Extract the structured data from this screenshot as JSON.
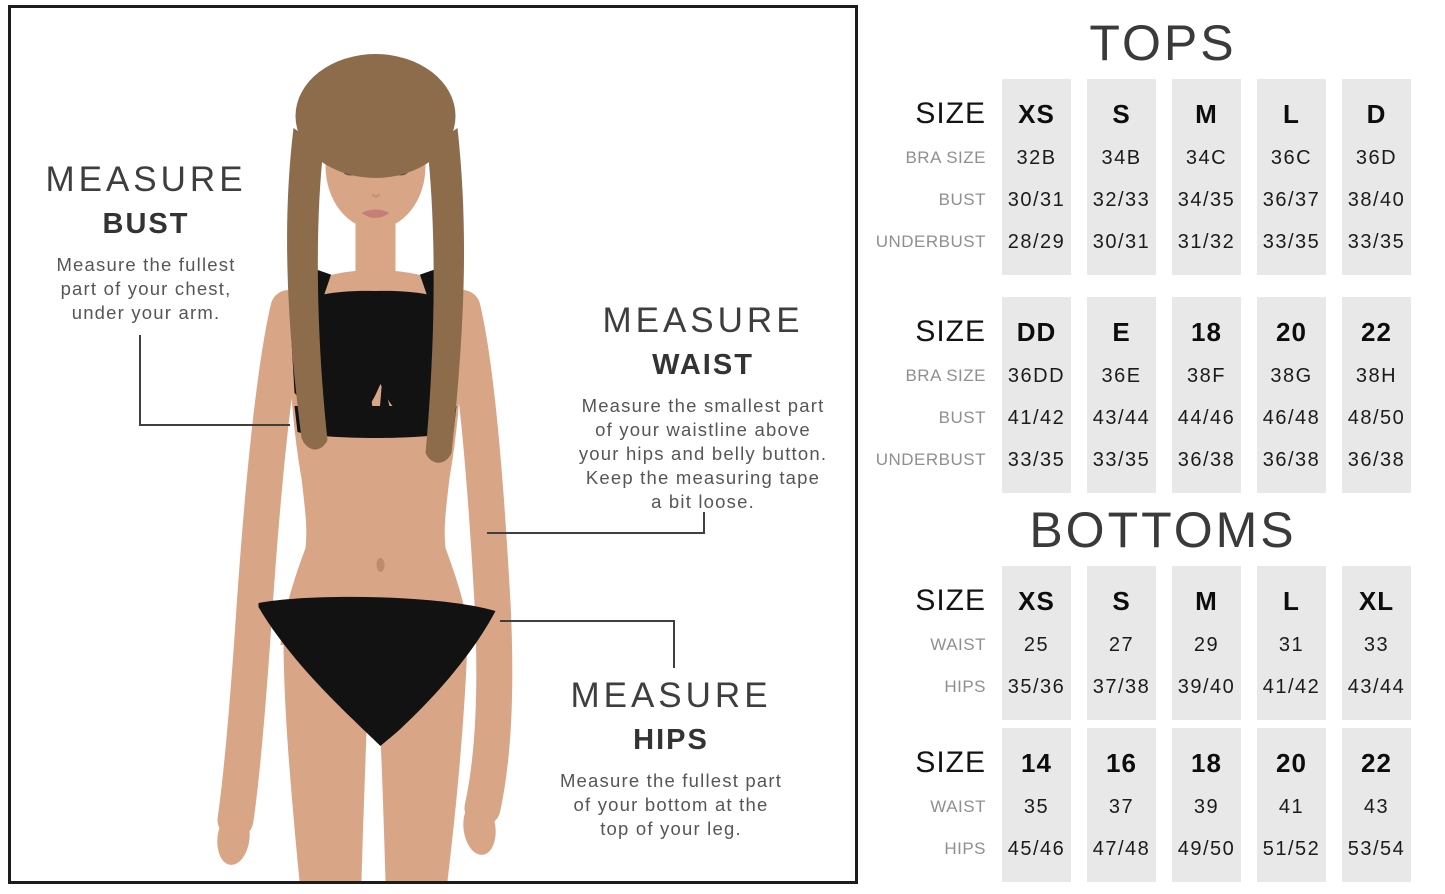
{
  "left_panel": {
    "measure_guides": {
      "bust": {
        "title": "MEASURE",
        "subtitle": "BUST",
        "lines": [
          "Measure the fullest",
          "part of your chest,",
          "under your arm."
        ]
      },
      "waist": {
        "title": "MEASURE",
        "subtitle": "WAIST",
        "lines": [
          "Measure the smallest part",
          "of your waistline above",
          "your hips and belly button.",
          "Keep the measuring tape",
          "a bit loose."
        ]
      },
      "hips": {
        "title": "MEASURE",
        "subtitle": "HIPS",
        "lines": [
          "Measure the fullest part",
          "of your bottom at the",
          "top of your leg."
        ]
      }
    }
  },
  "tops": {
    "title": "TOPS",
    "table1": {
      "size_label": "SIZE",
      "sizes": [
        "XS",
        "S",
        "M",
        "L",
        "D"
      ],
      "rows": [
        {
          "label": "BRA SIZE",
          "values": [
            "32B",
            "34B",
            "34C",
            "36C",
            "36D"
          ]
        },
        {
          "label": "BUST",
          "values": [
            "30/31",
            "32/33",
            "34/35",
            "36/37",
            "38/40"
          ]
        },
        {
          "label": "UNDERBUST",
          "values": [
            "28/29",
            "30/31",
            "31/32",
            "33/35",
            "33/35"
          ]
        }
      ]
    },
    "table2": {
      "size_label": "SIZE",
      "sizes": [
        "DD",
        "E",
        "18",
        "20",
        "22"
      ],
      "rows": [
        {
          "label": "BRA SIZE",
          "values": [
            "36DD",
            "36E",
            "38F",
            "38G",
            "38H"
          ]
        },
        {
          "label": "BUST",
          "values": [
            "41/42",
            "43/44",
            "44/46",
            "46/48",
            "48/50"
          ]
        },
        {
          "label": "UNDERBUST",
          "values": [
            "33/35",
            "33/35",
            "36/38",
            "36/38",
            "36/38"
          ]
        }
      ]
    }
  },
  "bottoms": {
    "title": "BOTTOMS",
    "table1": {
      "size_label": "SIZE",
      "sizes": [
        "XS",
        "S",
        "M",
        "L",
        "XL"
      ],
      "rows": [
        {
          "label": "WAIST",
          "values": [
            "25",
            "27",
            "29",
            "31",
            "33"
          ]
        },
        {
          "label": "HIPS",
          "values": [
            "35/36",
            "37/38",
            "39/40",
            "41/42",
            "43/44"
          ]
        }
      ]
    },
    "table2": {
      "size_label": "SIZE",
      "sizes": [
        "14",
        "16",
        "18",
        "20",
        "22"
      ],
      "rows": [
        {
          "label": "WAIST",
          "values": [
            "35",
            "37",
            "39",
            "41",
            "43"
          ]
        },
        {
          "label": "HIPS",
          "values": [
            "45/46",
            "47/48",
            "49/50",
            "51/52",
            "53/54"
          ]
        }
      ]
    }
  },
  "colors": {
    "frame_border": "#1c1c1c",
    "section_title": "#3a3a3a",
    "column_background": "#e8e8e8",
    "row_label": "#8f8f8f",
    "value_text": "#1b1b1b",
    "description_text": "#565656",
    "connector_line": "#3f3f3f",
    "skin": "#d9a587",
    "hair": "#8d6c4c",
    "bikini": "#121212"
  }
}
